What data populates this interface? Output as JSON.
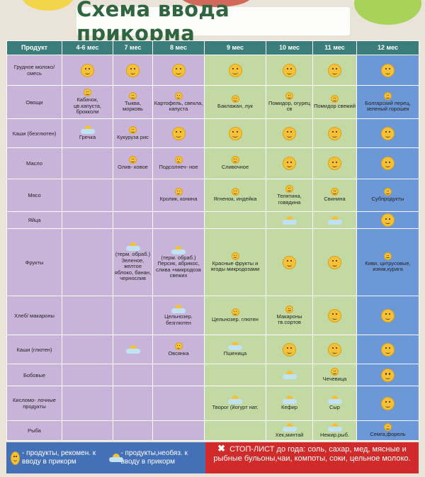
{
  "title": "Схема ввода прикорма",
  "headers": [
    "Продукт",
    "4-6 мес",
    "7 мес",
    "8 мес",
    "9 мес",
    "10 мес",
    "11 мес",
    "12 мес"
  ],
  "column_colors": [
    "purple",
    "purple",
    "purple",
    "purple",
    "green",
    "green",
    "green",
    "blue"
  ],
  "colors": {
    "purple": "#c8b4d9",
    "green": "#c3d9a4",
    "blue": "#6c98d8",
    "header": "#3a7d7a",
    "stop": "#d12a2a",
    "legend": "#4470b8"
  },
  "rows": [
    {
      "label": "Грудное молоко/ смесь",
      "cells": [
        {
          "icon": "smile",
          "text": ""
        },
        {
          "icon": "smile",
          "text": ""
        },
        {
          "icon": "smile",
          "text": ""
        },
        {
          "icon": "smile",
          "text": ""
        },
        {
          "icon": "smile",
          "text": ""
        },
        {
          "icon": "smile",
          "text": ""
        },
        {
          "icon": "smile",
          "text": ""
        }
      ]
    },
    {
      "label": "Овощи",
      "cells": [
        {
          "icon": "smile-s",
          "text": "Кабачок, цв.капуста, брокколи"
        },
        {
          "icon": "smile-s",
          "text": "Тыква, морковь"
        },
        {
          "icon": "smile-s",
          "text": "Картофель, свекла, капуста"
        },
        {
          "icon": "smile-s",
          "text": "Баклажан, лук"
        },
        {
          "icon": "smile-s",
          "text": "Помидор, огурец св"
        },
        {
          "icon": "smile-s",
          "text": "Помидор свежий"
        },
        {
          "icon": "smile-s",
          "text": "Болгарский перец, зеленый горошек"
        }
      ]
    },
    {
      "label": "Каши (безглютен)",
      "cells": [
        {
          "icon": "sun",
          "text": "Гречка"
        },
        {
          "icon": "smile-s",
          "text": "Кукуруза рис"
        },
        {
          "icon": "smile",
          "text": ""
        },
        {
          "icon": "smile",
          "text": ""
        },
        {
          "icon": "smile",
          "text": ""
        },
        {
          "icon": "smile",
          "text": ""
        },
        {
          "icon": "smile",
          "text": ""
        }
      ]
    },
    {
      "label": "Масло",
      "cells": [
        {
          "icon": "",
          "text": ""
        },
        {
          "icon": "smile-s",
          "text": "Олив- ковое"
        },
        {
          "icon": "smile-s",
          "text": "Подсолнеч- ное"
        },
        {
          "icon": "smile-s",
          "text": "Сливочное"
        },
        {
          "icon": "smile",
          "text": ""
        },
        {
          "icon": "smile",
          "text": ""
        },
        {
          "icon": "smile",
          "text": ""
        }
      ]
    },
    {
      "label": "Мясо",
      "cells": [
        {
          "icon": "",
          "text": ""
        },
        {
          "icon": "",
          "text": ""
        },
        {
          "icon": "smile-s",
          "text": "Кролик, конина"
        },
        {
          "icon": "smile-s",
          "text": "Ягненок, индейка"
        },
        {
          "icon": "smile-s",
          "text": "Телятина, говядина"
        },
        {
          "icon": "smile-s",
          "text": "Свинина"
        },
        {
          "icon": "smile-s",
          "text": "Субпродукты"
        }
      ]
    },
    {
      "label": "Яйца",
      "cells": [
        {
          "icon": "",
          "text": ""
        },
        {
          "icon": "",
          "text": ""
        },
        {
          "icon": "",
          "text": ""
        },
        {
          "icon": "",
          "text": ""
        },
        {
          "icon": "sun",
          "text": ""
        },
        {
          "icon": "sun",
          "text": ""
        },
        {
          "icon": "smile",
          "text": ""
        }
      ]
    },
    {
      "label": "Фрукты",
      "cells": [
        {
          "icon": "",
          "text": ""
        },
        {
          "icon": "sun",
          "text": "(терм. обраб.) Зеленое, желтое яблоко, банан, чернослив"
        },
        {
          "icon": "sun",
          "text": "(терм. обраб.) Персик, абрикос, слива +микродоза свежих"
        },
        {
          "icon": "smile-s",
          "text": "Красные фрукты и ягоды микродозами"
        },
        {
          "icon": "smile",
          "text": ""
        },
        {
          "icon": "smile",
          "text": ""
        },
        {
          "icon": "smile-s",
          "text": "Киви, цитрусовые, изюм,курага"
        }
      ]
    },
    {
      "label": "Хлеб/ макароны",
      "cells": [
        {
          "icon": "",
          "text": ""
        },
        {
          "icon": "",
          "text": ""
        },
        {
          "icon": "sun",
          "text": "Цельнозер. безглютен"
        },
        {
          "icon": "smile-s",
          "text": "Цельнозер. глютен"
        },
        {
          "icon": "smile-s",
          "text": "Макароны тв.сортов"
        },
        {
          "icon": "smile",
          "text": ""
        },
        {
          "icon": "smile",
          "text": ""
        }
      ]
    },
    {
      "label": "Каши (глютен)",
      "cells": [
        {
          "icon": "",
          "text": ""
        },
        {
          "icon": "sun",
          "text": ""
        },
        {
          "icon": "smile-s",
          "text": "Овсянка"
        },
        {
          "icon": "sun",
          "text": "Пшеница"
        },
        {
          "icon": "smile",
          "text": ""
        },
        {
          "icon": "smile",
          "text": ""
        },
        {
          "icon": "smile",
          "text": ""
        }
      ]
    },
    {
      "label": "Бобовые",
      "cells": [
        {
          "icon": "",
          "text": ""
        },
        {
          "icon": "",
          "text": ""
        },
        {
          "icon": "",
          "text": ""
        },
        {
          "icon": "",
          "text": ""
        },
        {
          "icon": "sun",
          "text": ""
        },
        {
          "icon": "smile-s",
          "text": "Чечевица"
        },
        {
          "icon": "smile",
          "text": ""
        }
      ]
    },
    {
      "label": "Кисломо- лочные продукты",
      "cells": [
        {
          "icon": "",
          "text": ""
        },
        {
          "icon": "",
          "text": ""
        },
        {
          "icon": "",
          "text": ""
        },
        {
          "icon": "sun",
          "text": "Творог (йогурт нат."
        },
        {
          "icon": "sun",
          "text": "Кефир"
        },
        {
          "icon": "sun",
          "text": "Сыр"
        },
        {
          "icon": "smile",
          "text": ""
        }
      ]
    },
    {
      "label": "Рыба",
      "cells": [
        {
          "icon": "",
          "text": ""
        },
        {
          "icon": "",
          "text": ""
        },
        {
          "icon": "",
          "text": ""
        },
        {
          "icon": "",
          "text": ""
        },
        {
          "icon": "sun",
          "text": "Хек,минтай"
        },
        {
          "icon": "sun",
          "text": "Нежир.рыб."
        },
        {
          "icon": "smile-s",
          "text": "Семга,форель"
        }
      ]
    }
  ],
  "legend": {
    "recommended": "- продукты, рекомен. к вводу в прикорм",
    "optional": "- продукты,необяз. к вводу в прикорм"
  },
  "stop": {
    "title": "СТОП-ЛИСТ до года:",
    "text": "соль, сахар, мед, мясные и рыбные бульоны,чаи, компоты, соки, цельное молоко."
  }
}
